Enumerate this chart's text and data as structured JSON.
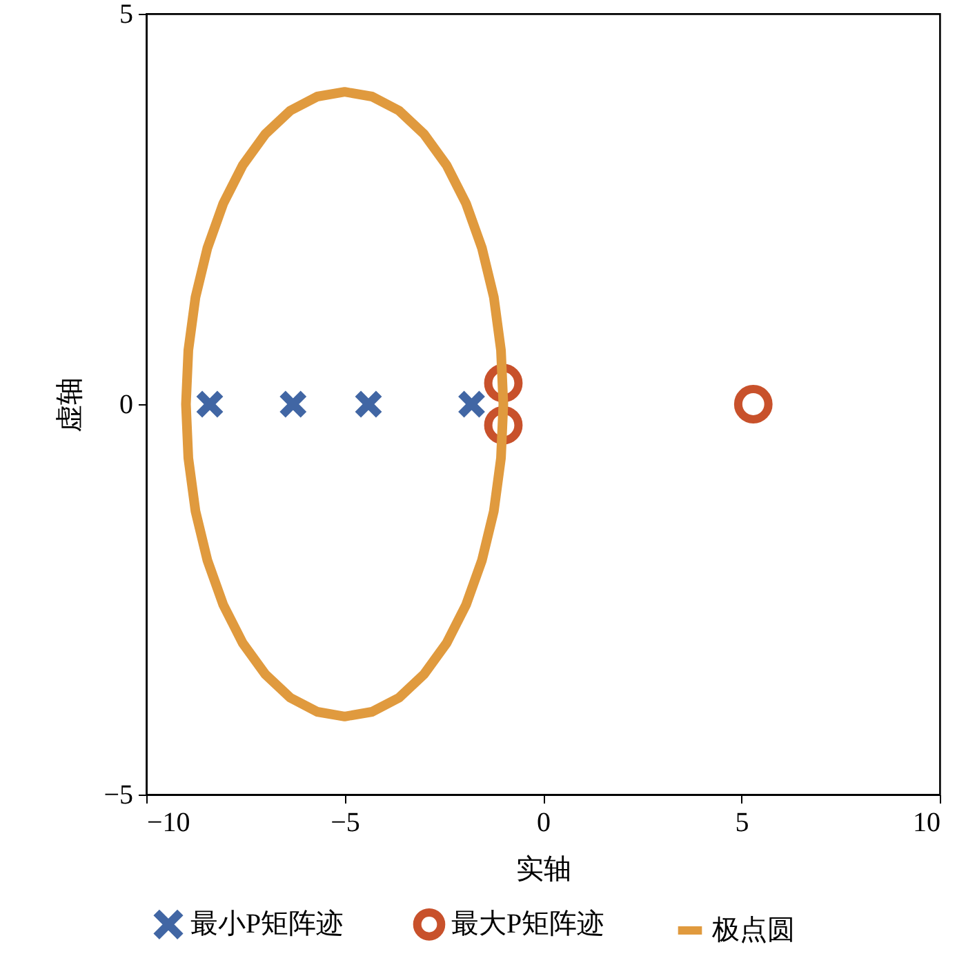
{
  "chart_data": {
    "type": "scatter",
    "xlabel": "实轴",
    "ylabel": "虚轴",
    "xlim": [
      -10,
      10
    ],
    "ylim": [
      -5,
      5
    ],
    "xticks": [
      -10,
      -5,
      0,
      5,
      10
    ],
    "yticks": [
      -5,
      0,
      5
    ],
    "legend": "bottom",
    "series": [
      {
        "name": "最小P矩阵迹",
        "marker": "cross",
        "color": "#4166a4",
        "x": [
          -8.4,
          -6.3,
          -4.4,
          -1.8
        ],
        "values": [
          0,
          0,
          0,
          0
        ]
      },
      {
        "name": "最大P矩阵迹",
        "marker": "circle",
        "color": "#c8512b",
        "x": [
          -1.0,
          -1.0,
          5.3
        ],
        "values": [
          0.27,
          -0.27,
          0
        ]
      },
      {
        "name": "极点圆",
        "type": "line",
        "color": "#e09a3e",
        "x": [
          -1,
          -1.06,
          -1.24,
          -1.54,
          -1.94,
          -2.43,
          -3,
          -3.63,
          -4.31,
          -5,
          -5.69,
          -6.37,
          -7,
          -7.57,
          -8.06,
          -8.46,
          -8.76,
          -8.94,
          -9,
          -8.94,
          -8.76,
          -8.46,
          -8.06,
          -7.57,
          -7,
          -6.37,
          -5.69,
          -5,
          -4.31,
          -3.63,
          -3,
          -2.43,
          -1.94,
          -1.54,
          -1.24,
          -1.06,
          -1,
          -1.06
        ],
        "values": [
          0,
          0.69,
          1.37,
          2.0,
          2.57,
          3.06,
          3.46,
          3.76,
          3.94,
          4,
          3.94,
          3.76,
          3.46,
          3.06,
          2.57,
          2.0,
          1.37,
          0.69,
          0,
          -0.69,
          -1.37,
          -2.0,
          -2.57,
          -3.06,
          -3.46,
          -3.76,
          -3.94,
          -4,
          -3.94,
          -3.76,
          -3.46,
          -3.06,
          -2.57,
          -2.0,
          -1.37,
          -0.69,
          0,
          0.69
        ]
      }
    ]
  }
}
